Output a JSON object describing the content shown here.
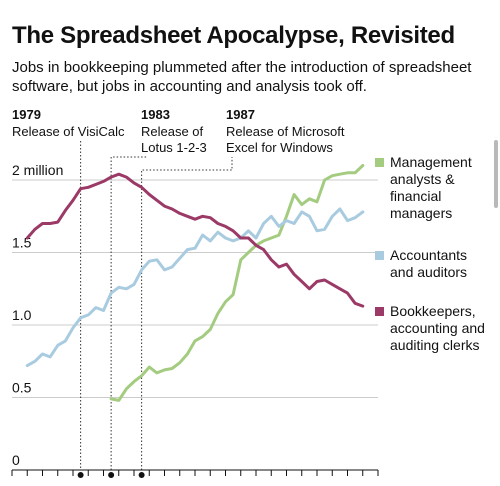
{
  "header": {
    "title": "The Spreadsheet Apocalypse, Revisited",
    "subtitle": "Jobs in bookkeeping plummeted after the introduction of spreadsheet software, but jobs in accounting and analysis took off."
  },
  "colors": {
    "management": "#a4cc80",
    "accountants": "#a9cbe0",
    "bookkeepers": "#9b3a66",
    "grid": "#cccccc",
    "text": "#111111"
  },
  "chart_data": {
    "type": "line",
    "title": "The Spreadsheet Apocalypse, Revisited",
    "ylim": [
      0,
      2.1
    ],
    "xlim": [
      1970,
      2018
    ],
    "y_ticks": [
      {
        "value": 0,
        "label": "0"
      },
      {
        "value": 0.5,
        "label": "0.5"
      },
      {
        "value": 1.0,
        "label": "1.0"
      },
      {
        "value": 1.5,
        "label": "1.5"
      },
      {
        "value": 2.0,
        "label": "2 million"
      }
    ],
    "annotations": [
      {
        "year": 1979,
        "label_year": "1979",
        "label_lines": [
          "Release of VisiCalc"
        ]
      },
      {
        "year": 1983,
        "label_year": "1983",
        "label_lines": [
          "Release of",
          "Lotus 1-2-3"
        ]
      },
      {
        "year": 1987,
        "label_year": "1987",
        "label_lines": [
          "Release of Microsoft",
          "Excel for Windows"
        ]
      }
    ],
    "series": [
      {
        "name": "Management analysts & financial managers",
        "legend_lines": [
          "Management",
          "analysts &",
          "financial",
          "managers"
        ],
        "color_key": "management",
        "x": [
          1983,
          1984,
          1985,
          1986,
          1987,
          1988,
          1989,
          1990,
          1991,
          1992,
          1993,
          1994,
          1995,
          1996,
          1997,
          1998,
          1999,
          2000,
          2001,
          2002,
          2003,
          2004,
          2005,
          2006,
          2007,
          2008,
          2009,
          2010,
          2011,
          2012,
          2013,
          2014,
          2015,
          2016
        ],
        "values": [
          0.49,
          0.48,
          0.56,
          0.61,
          0.65,
          0.71,
          0.67,
          0.69,
          0.7,
          0.74,
          0.8,
          0.89,
          0.92,
          0.97,
          1.08,
          1.16,
          1.21,
          1.45,
          1.5,
          1.55,
          1.58,
          1.6,
          1.62,
          1.75,
          1.9,
          1.83,
          1.87,
          1.85,
          2.0,
          2.03,
          2.04,
          2.05,
          2.05,
          2.1
        ]
      },
      {
        "name": "Accountants and auditors",
        "legend_lines": [
          "Accountants",
          "and auditors"
        ],
        "color_key": "accountants",
        "x": [
          1972,
          1973,
          1974,
          1975,
          1976,
          1977,
          1978,
          1979,
          1980,
          1981,
          1982,
          1983,
          1984,
          1985,
          1986,
          1987,
          1988,
          1989,
          1990,
          1991,
          1992,
          1993,
          1994,
          1995,
          1996,
          1997,
          1998,
          1999,
          2000,
          2001,
          2002,
          2003,
          2004,
          2005,
          2006,
          2007,
          2008,
          2009,
          2010,
          2011,
          2012,
          2013,
          2014,
          2015,
          2016
        ],
        "values": [
          0.72,
          0.75,
          0.8,
          0.78,
          0.86,
          0.89,
          0.98,
          1.05,
          1.07,
          1.12,
          1.1,
          1.22,
          1.26,
          1.25,
          1.28,
          1.38,
          1.44,
          1.45,
          1.38,
          1.4,
          1.46,
          1.52,
          1.53,
          1.62,
          1.58,
          1.64,
          1.6,
          1.58,
          1.6,
          1.65,
          1.6,
          1.7,
          1.75,
          1.68,
          1.72,
          1.7,
          1.78,
          1.75,
          1.65,
          1.66,
          1.75,
          1.8,
          1.72,
          1.74,
          1.78
        ]
      },
      {
        "name": "Bookkeepers, accounting and auditing clerks",
        "legend_lines": [
          "Bookkeepers,",
          "accounting and",
          "auditing clerks"
        ],
        "color_key": "bookkeepers",
        "x": [
          1972,
          1973,
          1974,
          1975,
          1976,
          1977,
          1978,
          1979,
          1980,
          1981,
          1982,
          1983,
          1984,
          1985,
          1986,
          1987,
          1988,
          1989,
          1990,
          1991,
          1992,
          1993,
          1994,
          1995,
          1996,
          1997,
          1998,
          1999,
          2000,
          2001,
          2002,
          2003,
          2004,
          2005,
          2006,
          2007,
          2008,
          2009,
          2010,
          2011,
          2012,
          2013,
          2014,
          2015,
          2016
        ],
        "values": [
          1.6,
          1.66,
          1.7,
          1.7,
          1.71,
          1.79,
          1.86,
          1.94,
          1.95,
          1.97,
          1.99,
          2.02,
          2.04,
          2.02,
          1.98,
          1.95,
          1.9,
          1.86,
          1.82,
          1.8,
          1.77,
          1.75,
          1.73,
          1.75,
          1.74,
          1.7,
          1.68,
          1.65,
          1.6,
          1.6,
          1.55,
          1.52,
          1.45,
          1.4,
          1.42,
          1.35,
          1.3,
          1.25,
          1.3,
          1.31,
          1.28,
          1.25,
          1.22,
          1.15,
          1.13
        ]
      }
    ],
    "xlabel": "",
    "ylabel": ""
  }
}
